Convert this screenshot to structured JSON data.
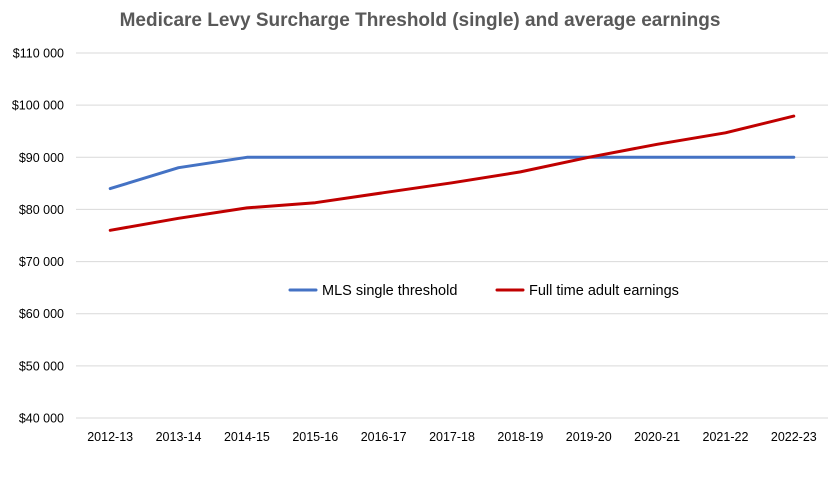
{
  "chart_data": {
    "type": "line",
    "title": "Medicare Levy Surcharge Threshold (single) and average earnings",
    "xlabel": "",
    "ylabel": "",
    "categories": [
      "2012-13",
      "2013-14",
      "2014-15",
      "2015-16",
      "2016-17",
      "2017-18",
      "2018-19",
      "2019-20",
      "2020-21",
      "2021-22",
      "2022-23"
    ],
    "ylim": [
      40000,
      110000
    ],
    "yticks": [
      40000,
      50000,
      60000,
      70000,
      80000,
      90000,
      100000,
      110000
    ],
    "ytick_labels": [
      "$40 000",
      "$50 000",
      "$60 000",
      "$70 000",
      "$80 000",
      "$90 000",
      "$100 000",
      "$110 000"
    ],
    "grid": true,
    "legend_position": "center",
    "series": [
      {
        "name": "MLS single threshold",
        "color": "#4472C4",
        "values": [
          84000,
          88000,
          90000,
          90000,
          90000,
          90000,
          90000,
          90000,
          90000,
          90000,
          90000
        ]
      },
      {
        "name": "Full time adult earnings",
        "color": "#C00000",
        "values": [
          76000,
          78300,
          80300,
          81300,
          83200,
          85100,
          87200,
          90000,
          92500,
          94700,
          97900
        ]
      }
    ]
  }
}
